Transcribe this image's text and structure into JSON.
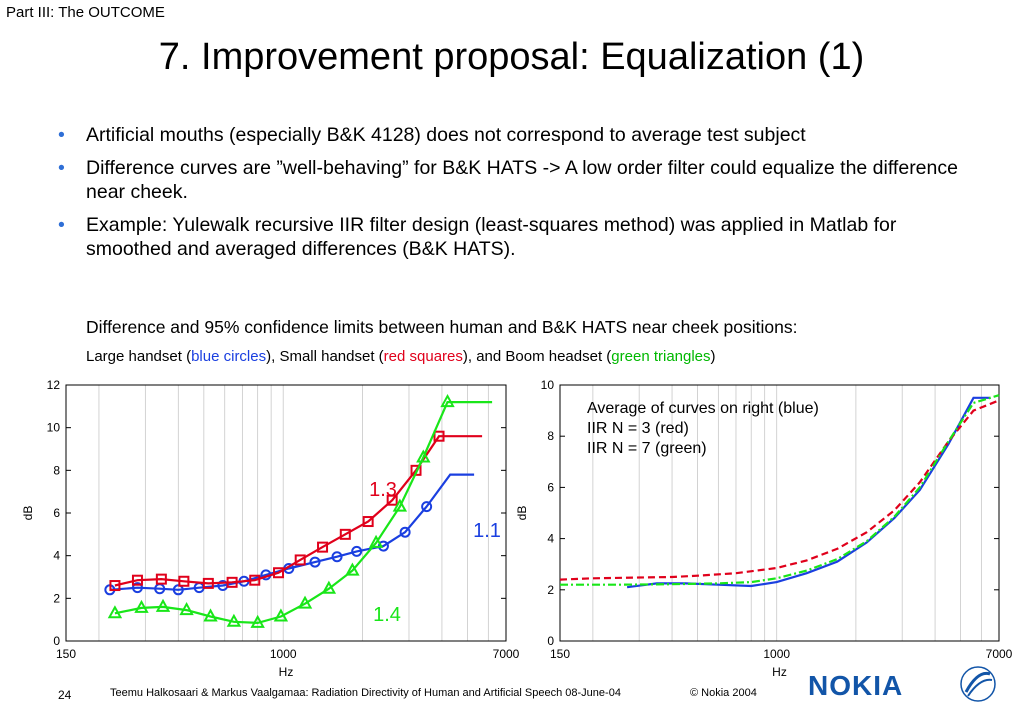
{
  "header": {
    "part": "Part III: The OUTCOME",
    "title": "7. Improvement proposal: Equalization (1)"
  },
  "bullets": [
    "Artificial mouths (especially B&K 4128) does not correspond to average test subject",
    "Difference curves are ”well-behaving” for B&K HATS -> A low order filter could equalize the difference near cheek.",
    "Example: Yulewalk recursive IIR filter design (least-squares method) was applied in Matlab for smoothed and averaged differences (B&K HATS)."
  ],
  "captions": {
    "line1": "Difference and 95% confidence limits between human and B&K HATS near cheek positions:",
    "line2_a": "Large handset (",
    "line2_blue": "blue circles",
    "line2_b": "), Small handset (",
    "line2_red": "red squares",
    "line2_c": "), and Boom headset (",
    "line2_green": "green triangles",
    "line2_d": ")"
  },
  "colors": {
    "blue": "#1a3fe0",
    "red": "#e0001b",
    "green": "#19e619",
    "bullet": "#2f6fd6",
    "nokia": "#1255a8"
  },
  "chart_data": [
    {
      "type": "line",
      "xlabel": "Hz",
      "ylabel": "dB",
      "xscale": "log",
      "xlim": [
        150,
        7000
      ],
      "ylim": [
        0,
        12
      ],
      "xticks": [
        "150",
        "1000",
        "7000"
      ],
      "yticks": [
        "0",
        "2",
        "4",
        "6",
        "8",
        "10",
        "12"
      ],
      "annotations": [
        "1.3",
        "1.1",
        "1.4"
      ],
      "series": [
        {
          "color": "blue",
          "marker": "circle",
          "x": [
            220,
            280,
            340,
            400,
            480,
            590,
            710,
            860,
            1050,
            1320,
            1600,
            1900,
            2400,
            2900,
            3500,
            4300,
            5300
          ],
          "y": [
            2.4,
            2.5,
            2.45,
            2.4,
            2.5,
            2.6,
            2.8,
            3.1,
            3.4,
            3.7,
            3.95,
            4.2,
            4.45,
            5.1,
            6.3,
            7.8,
            7.8
          ]
        },
        {
          "color": "red",
          "marker": "square",
          "x": [
            230,
            280,
            345,
            420,
            520,
            640,
            780,
            960,
            1160,
            1410,
            1720,
            2100,
            2590,
            3190,
            3900,
            4750,
            5680
          ],
          "y": [
            2.6,
            2.85,
            2.9,
            2.8,
            2.7,
            2.75,
            2.85,
            3.2,
            3.8,
            4.4,
            5.0,
            5.6,
            6.6,
            8.0,
            9.6,
            9.6,
            9.6
          ]
        },
        {
          "color": "green",
          "marker": "triangle",
          "x": [
            230,
            290,
            350,
            430,
            530,
            650,
            800,
            980,
            1210,
            1490,
            1830,
            2250,
            2770,
            3400,
            4200,
            5100,
            6200
          ],
          "y": [
            1.3,
            1.55,
            1.6,
            1.45,
            1.15,
            0.9,
            0.85,
            1.15,
            1.75,
            2.45,
            3.3,
            4.6,
            6.3,
            8.6,
            11.2,
            11.2,
            11.2
          ]
        }
      ]
    },
    {
      "type": "line",
      "xlabel": "Hz",
      "ylabel": "dB",
      "xscale": "log",
      "xlim": [
        150,
        7000
      ],
      "ylim": [
        0,
        10
      ],
      "xticks": [
        "150",
        "1000",
        "7000"
      ],
      "yticks": [
        "0",
        "2",
        "4",
        "6",
        "8",
        "10"
      ],
      "legend_text": [
        "Average of curves on right (blue)",
        "IIR N = 3 (red)",
        "IIR N = 7 (green)"
      ],
      "series": [
        {
          "color": "blue",
          "style": "solid",
          "x": [
            270,
            350,
            450,
            600,
            800,
            1000,
            1300,
            1700,
            2200,
            2800,
            3500,
            4500,
            5600,
            6500
          ],
          "y": [
            2.1,
            2.25,
            2.25,
            2.2,
            2.15,
            2.3,
            2.65,
            3.1,
            3.85,
            4.8,
            5.9,
            7.7,
            9.5,
            9.5
          ]
        },
        {
          "color": "red",
          "style": "dashed",
          "x": [
            150,
            200,
            300,
            400,
            500,
            700,
            1000,
            1300,
            1700,
            2200,
            2800,
            3500,
            4500,
            5600,
            7000
          ],
          "y": [
            2.4,
            2.45,
            2.48,
            2.5,
            2.55,
            2.65,
            2.85,
            3.15,
            3.6,
            4.25,
            5.1,
            6.2,
            7.8,
            9.0,
            9.4
          ]
        },
        {
          "color": "green",
          "style": "dashdot",
          "x": [
            150,
            250,
            400,
            600,
            800,
            1000,
            1300,
            1700,
            2200,
            2800,
            3500,
            4500,
            5600,
            7000
          ],
          "y": [
            2.2,
            2.2,
            2.22,
            2.25,
            2.3,
            2.45,
            2.75,
            3.2,
            3.9,
            4.85,
            6.0,
            7.8,
            9.3,
            9.6
          ]
        }
      ]
    }
  ],
  "footer": {
    "page": "24",
    "authors": "Teemu Halkosaari & Markus Vaalgamaa: Radiation Directivity of Human and Artificial Speech  08-June-04",
    "copyright": "© Nokia 2004",
    "logo": "NOKIA"
  }
}
